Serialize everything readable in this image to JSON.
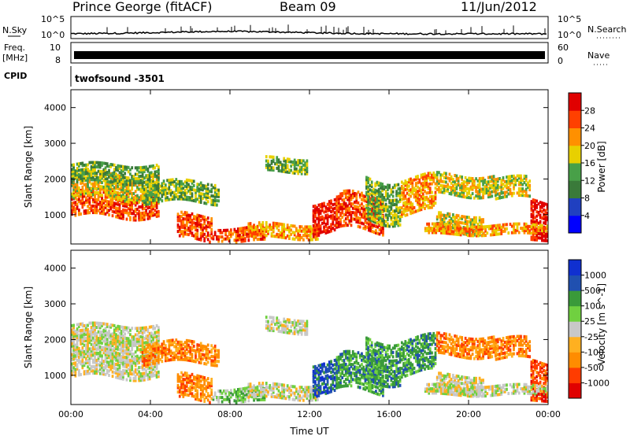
{
  "header": {
    "station": "Prince George (fitACF)",
    "beam": "Beam 09",
    "date": "11/Jun/2012"
  },
  "top_panels": {
    "nsky_label": "N.Sky",
    "nsky_ticks": [
      "10^5",
      "10^0"
    ],
    "nsearch_label": "N.Search",
    "freq_label": "Freq.",
    "freq_unit": "[MHz]",
    "freq_ticks": [
      "10",
      "8"
    ],
    "nave_label": "Nave",
    "nave_ticks": [
      "60",
      "0"
    ],
    "cpid_label": "CPID",
    "cpid_value": "twofsound  -3501"
  },
  "colors": {
    "power": [
      "#0000ff",
      "#2040c0",
      "#3a7a3a",
      "#48a048",
      "#e8d000",
      "#ff9000",
      "#ff4000",
      "#e00000"
    ],
    "velocity": [
      "#e00000",
      "#ff3c00",
      "#ff8c00",
      "#ffb020",
      "#c8c8c8",
      "#70d040",
      "#3a9a3a",
      "#2050b0",
      "#1030d0"
    ]
  },
  "chart_data": [
    {
      "type": "heatmap",
      "name": "Power",
      "ylabel": "Slant Range [km]",
      "yticks": [
        1000,
        2000,
        3000,
        4000
      ],
      "ylim": [
        180,
        4500
      ],
      "xlim": [
        "00:00",
        "24:00"
      ],
      "colorbar_label": "Power [dB]",
      "colorbar_ticks": [
        4,
        8,
        12,
        16,
        20,
        24,
        28
      ],
      "colorbar_range": [
        0,
        32
      ]
    },
    {
      "type": "heatmap",
      "name": "Velocity",
      "ylabel": "Slant Range [km]",
      "yticks": [
        1000,
        2000,
        3000,
        4000
      ],
      "ylim": [
        180,
        4500
      ],
      "xlim": [
        "00:00",
        "24:00"
      ],
      "xlabel": "Time UT",
      "xticks": [
        "00:00",
        "04:00",
        "08:00",
        "12:00",
        "16:00",
        "20:00",
        "00:00"
      ],
      "colorbar_label": "Velocity [m s^-1]",
      "colorbar_ticks": [
        "1000",
        "500",
        "100",
        "25",
        "-25",
        "-100",
        "-500",
        "-1000"
      ]
    }
  ]
}
